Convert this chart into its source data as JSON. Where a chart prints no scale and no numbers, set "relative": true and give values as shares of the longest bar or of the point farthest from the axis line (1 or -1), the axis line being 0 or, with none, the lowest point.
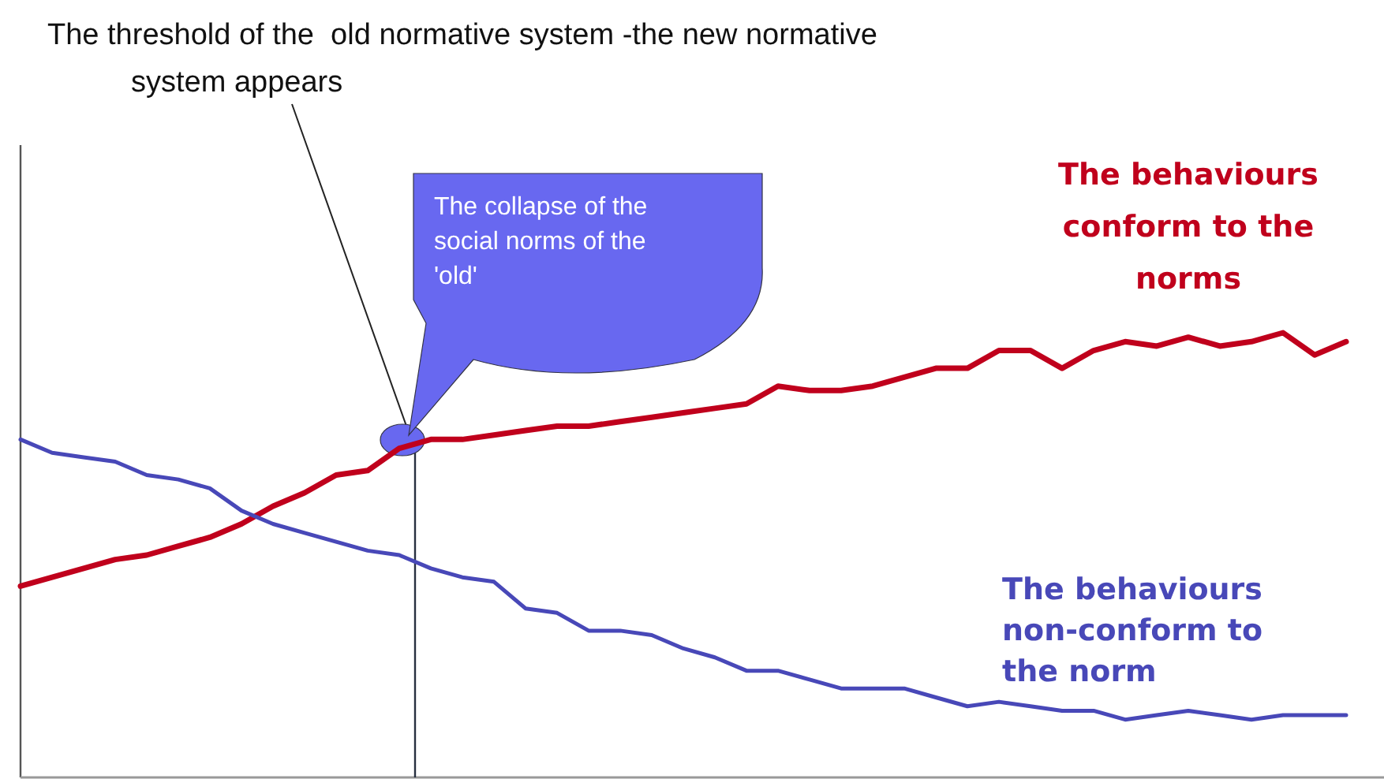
{
  "chart_data": {
    "type": "line",
    "relative": true,
    "marker": "none",
    "line_style": "solid",
    "categories": [
      null,
      null,
      null,
      null,
      null,
      null,
      null,
      null,
      null,
      null,
      null,
      null,
      null,
      null,
      null,
      null,
      null,
      null,
      null,
      null,
      null,
      null,
      null,
      null,
      null,
      null,
      null,
      null,
      null,
      null,
      null,
      null,
      null,
      null,
      null,
      null,
      null,
      null,
      null,
      null,
      null,
      null,
      null
    ],
    "series": [
      {
        "name": "The behaviours conform to the norms",
        "color": "#c0001c",
        "values": [
          0.43,
          0.45,
          0.47,
          0.49,
          0.5,
          0.52,
          0.54,
          0.57,
          0.61,
          0.64,
          0.68,
          0.69,
          0.74,
          0.76,
          0.76,
          0.77,
          0.78,
          0.79,
          0.79,
          0.8,
          0.81,
          0.82,
          0.83,
          0.84,
          0.88,
          0.87,
          0.87,
          0.88,
          0.9,
          0.92,
          0.92,
          0.96,
          0.96,
          0.92,
          0.96,
          0.98,
          0.97,
          0.99,
          0.97,
          0.98,
          1.0,
          0.95,
          0.98
        ]
      },
      {
        "name": "The behaviours non-conform to the norm",
        "color": "#4848b8",
        "values": [
          0.76,
          0.73,
          0.72,
          0.71,
          0.68,
          0.67,
          0.65,
          0.6,
          0.57,
          0.55,
          0.53,
          0.51,
          0.5,
          0.47,
          0.45,
          0.44,
          0.38,
          0.37,
          0.33,
          0.33,
          0.32,
          0.29,
          0.27,
          0.24,
          0.24,
          0.22,
          0.2,
          0.2,
          0.2,
          0.18,
          0.16,
          0.17,
          0.16,
          0.15,
          0.15,
          0.13,
          0.14,
          0.15,
          0.14,
          0.13,
          0.14,
          0.14,
          0.14
        ]
      }
    ],
    "annotations": [
      "The threshold of the  old normative system -the new normative system appears",
      "The collapse of the social norms of the 'old'"
    ]
  }
}
